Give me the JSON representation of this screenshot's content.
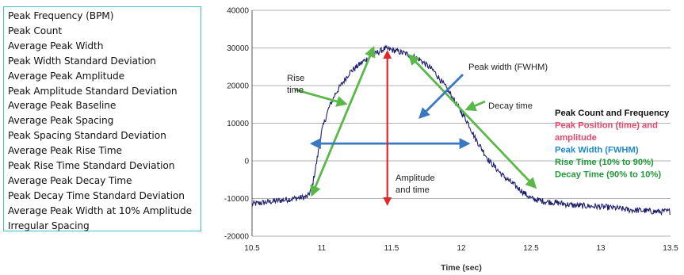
{
  "metric_list": [
    "Peak Frequency (BPM)",
    "Peak Count",
    "Average Peak Width",
    "Peak Width Standard Deviation",
    "Average Peak Amplitude",
    "Peak Amplitude Standard Deviation",
    "Average Peak Baseline",
    "Average Peak Spacing",
    "Peak Spacing Standard Deviation",
    "Average Peak Rise Time",
    "Peak Rise Time Standard Deviation",
    "Average Peak Decay Time",
    "Peak Decay Time Standard Deviation",
    "Average Peak Width at 10% Amplitude",
    "Irregular Spacing"
  ],
  "colors": {
    "signal": "#1f1f6e",
    "rise": "#5ab848",
    "decay": "#5ab848",
    "width": "#3a78c2",
    "amplitude": "#e0282a",
    "legend_black": "#111111",
    "legend_pink": "#e8466a",
    "legend_blue": "#1f8ac8",
    "legend_green": "#1f9a3a",
    "grid": "#999999",
    "list_border": "#3cc3c8"
  },
  "chart_data": {
    "type": "line",
    "xlabel": "Time (sec)",
    "ylabel": "",
    "xlim": [
      10.5,
      13.5
    ],
    "ylim": [
      -20000,
      40000
    ],
    "x_ticks": [
      "10.5",
      "11",
      "11.5",
      "12",
      "12.5",
      "13",
      "13.5"
    ],
    "y_ticks": [
      "40000",
      "30000",
      "20000",
      "10000",
      "0",
      "-10000",
      "-20000"
    ],
    "grid": "horizontal",
    "series": [
      {
        "x": [
          10.5,
          10.6,
          10.7,
          10.8,
          10.9,
          10.93,
          10.96,
          11.0,
          11.05,
          11.1,
          11.2,
          11.3,
          11.4,
          11.45,
          11.5,
          11.6,
          11.7,
          11.8,
          11.9,
          12.0,
          12.05,
          12.1,
          12.2,
          12.3,
          12.4,
          12.5,
          12.6,
          12.7,
          12.8,
          12.9,
          13.0,
          13.1,
          13.2,
          13.3,
          13.4,
          13.5
        ],
        "y": [
          -11500,
          -11000,
          -10500,
          -10000,
          -9500,
          -7000,
          -1000,
          8000,
          14000,
          18000,
          23500,
          26500,
          28800,
          29800,
          29500,
          28500,
          27000,
          24000,
          19000,
          13000,
          10000,
          6000,
          0,
          -4000,
          -7000,
          -10000,
          -10800,
          -11200,
          -11800,
          -12000,
          -12200,
          -12500,
          -13000,
          -13200,
          -13500,
          -13400
        ]
      }
    ],
    "annotations": [
      {
        "text": "Rise time",
        "lines": [
          "Rise",
          "time"
        ]
      },
      {
        "text": "Peak width (FWHM)",
        "lines": [
          "Peak width (FWHM)"
        ]
      },
      {
        "text": "Decay time",
        "lines": [
          "Decay time"
        ]
      },
      {
        "text": "Amplitude and time",
        "lines": [
          "Amplitude",
          "and time"
        ]
      }
    ],
    "legend": [
      {
        "lines": [
          "Peak Count and Frequency"
        ],
        "color_key": "legend_black"
      },
      {
        "lines": [
          "Peak Position (time) and",
          "amplitude"
        ],
        "color_key": "legend_pink"
      },
      {
        "lines": [
          "Peak Width (FWHM)"
        ],
        "color_key": "legend_blue"
      },
      {
        "lines": [
          "Rise Time (10% to 90%)"
        ],
        "color_key": "legend_green"
      },
      {
        "lines": [
          "Decay Time (90% to 10%)"
        ],
        "color_key": "legend_green"
      }
    ],
    "rise_line": {
      "from": [
        10.93,
        -9000
      ],
      "to": [
        11.37,
        30000
      ]
    },
    "decay_line": {
      "from": [
        11.63,
        28000
      ],
      "to": [
        12.53,
        -7000
      ]
    },
    "width_line": {
      "from": [
        10.93,
        4600
      ],
      "to": [
        12.05,
        4600
      ]
    },
    "amplitude_line": {
      "x": 11.47,
      "from": 29000,
      "to": -11500
    }
  }
}
